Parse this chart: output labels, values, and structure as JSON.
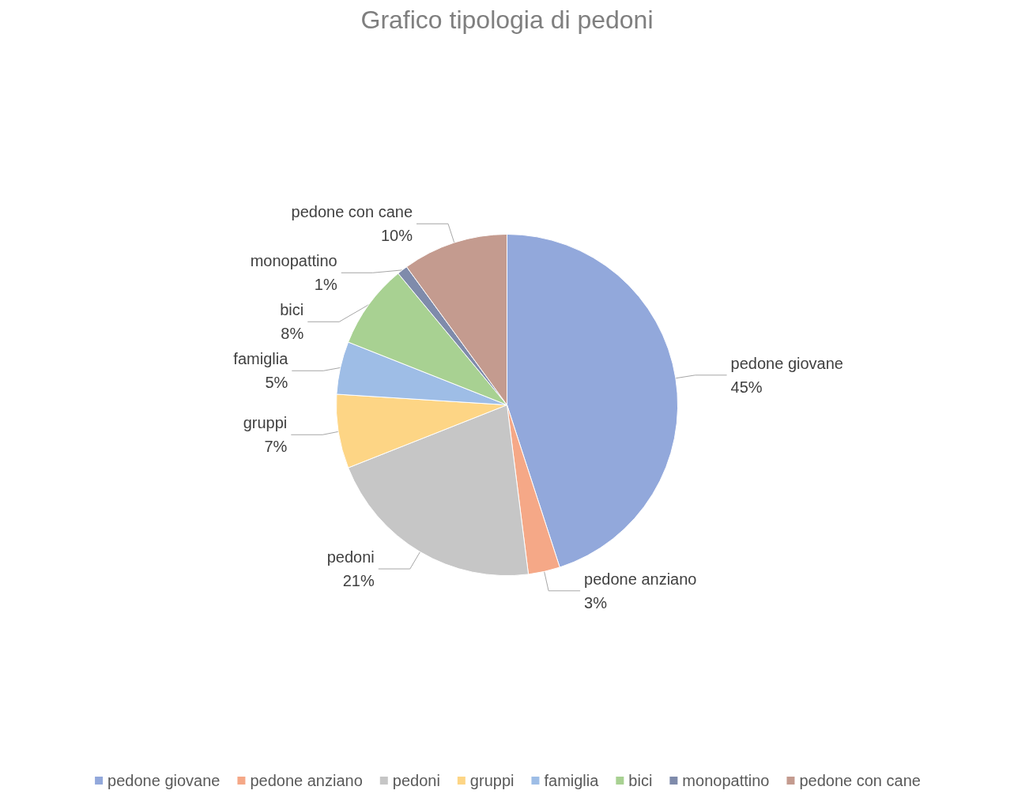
{
  "chart_data": {
    "type": "pie",
    "title": "Grafico tipologia di pedoni",
    "categories": [
      "pedone giovane",
      "pedone anziano",
      "pedoni",
      "gruppi",
      "famiglia",
      "bici",
      "monopattino",
      "pedone con cane"
    ],
    "values": [
      45,
      3,
      21,
      7,
      5,
      8,
      1,
      10
    ],
    "value_labels": [
      "45%",
      "3%",
      "21%",
      "7%",
      "5%",
      "8%",
      "1%",
      "10%"
    ],
    "colors": [
      "#92a8db",
      "#f5a887",
      "#c6c6c6",
      "#fdd585",
      "#9ebde6",
      "#a8d192",
      "#7f8bab",
      "#c49b8f"
    ],
    "legend": "bottom"
  }
}
